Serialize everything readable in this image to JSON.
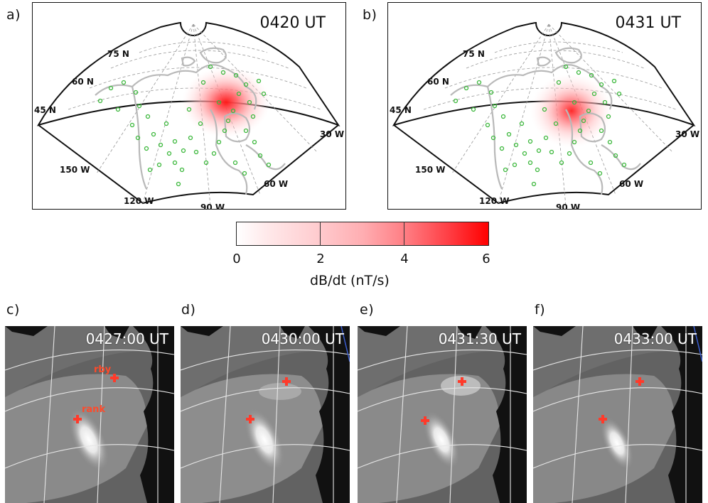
{
  "panels": {
    "a": {
      "letter": "a)",
      "time": "0420 UT"
    },
    "b": {
      "letter": "b)",
      "time": "0431 UT"
    },
    "c": {
      "letter": "c)",
      "time": "0427:00 UT"
    },
    "d": {
      "letter": "d)",
      "time": "0430:00 UT"
    },
    "e": {
      "letter": "e)",
      "time": "0431:30 UT"
    },
    "f": {
      "letter": "f)",
      "time": "0433:00 UT"
    }
  },
  "map_labels": {
    "lat_75": "75 N",
    "lat_60": "60 N",
    "lat_45": "45 N",
    "lon_150": "150 W",
    "lon_120": "120 W",
    "lon_90": "90 W",
    "lon_60": "60 W",
    "lon_30": "30 W"
  },
  "colorbar": {
    "ticks": [
      "0",
      "2",
      "4",
      "6"
    ],
    "label": "dB/dt  (nT/s)",
    "min_color": "#ffffff",
    "max_color": "#ff0000"
  },
  "sites": {
    "rby": "rby",
    "rank": "rank"
  },
  "colors": {
    "station_marker": "#3cb83c",
    "site_marker": "#ff3a2a",
    "coastline": "#bdbdbd"
  }
}
